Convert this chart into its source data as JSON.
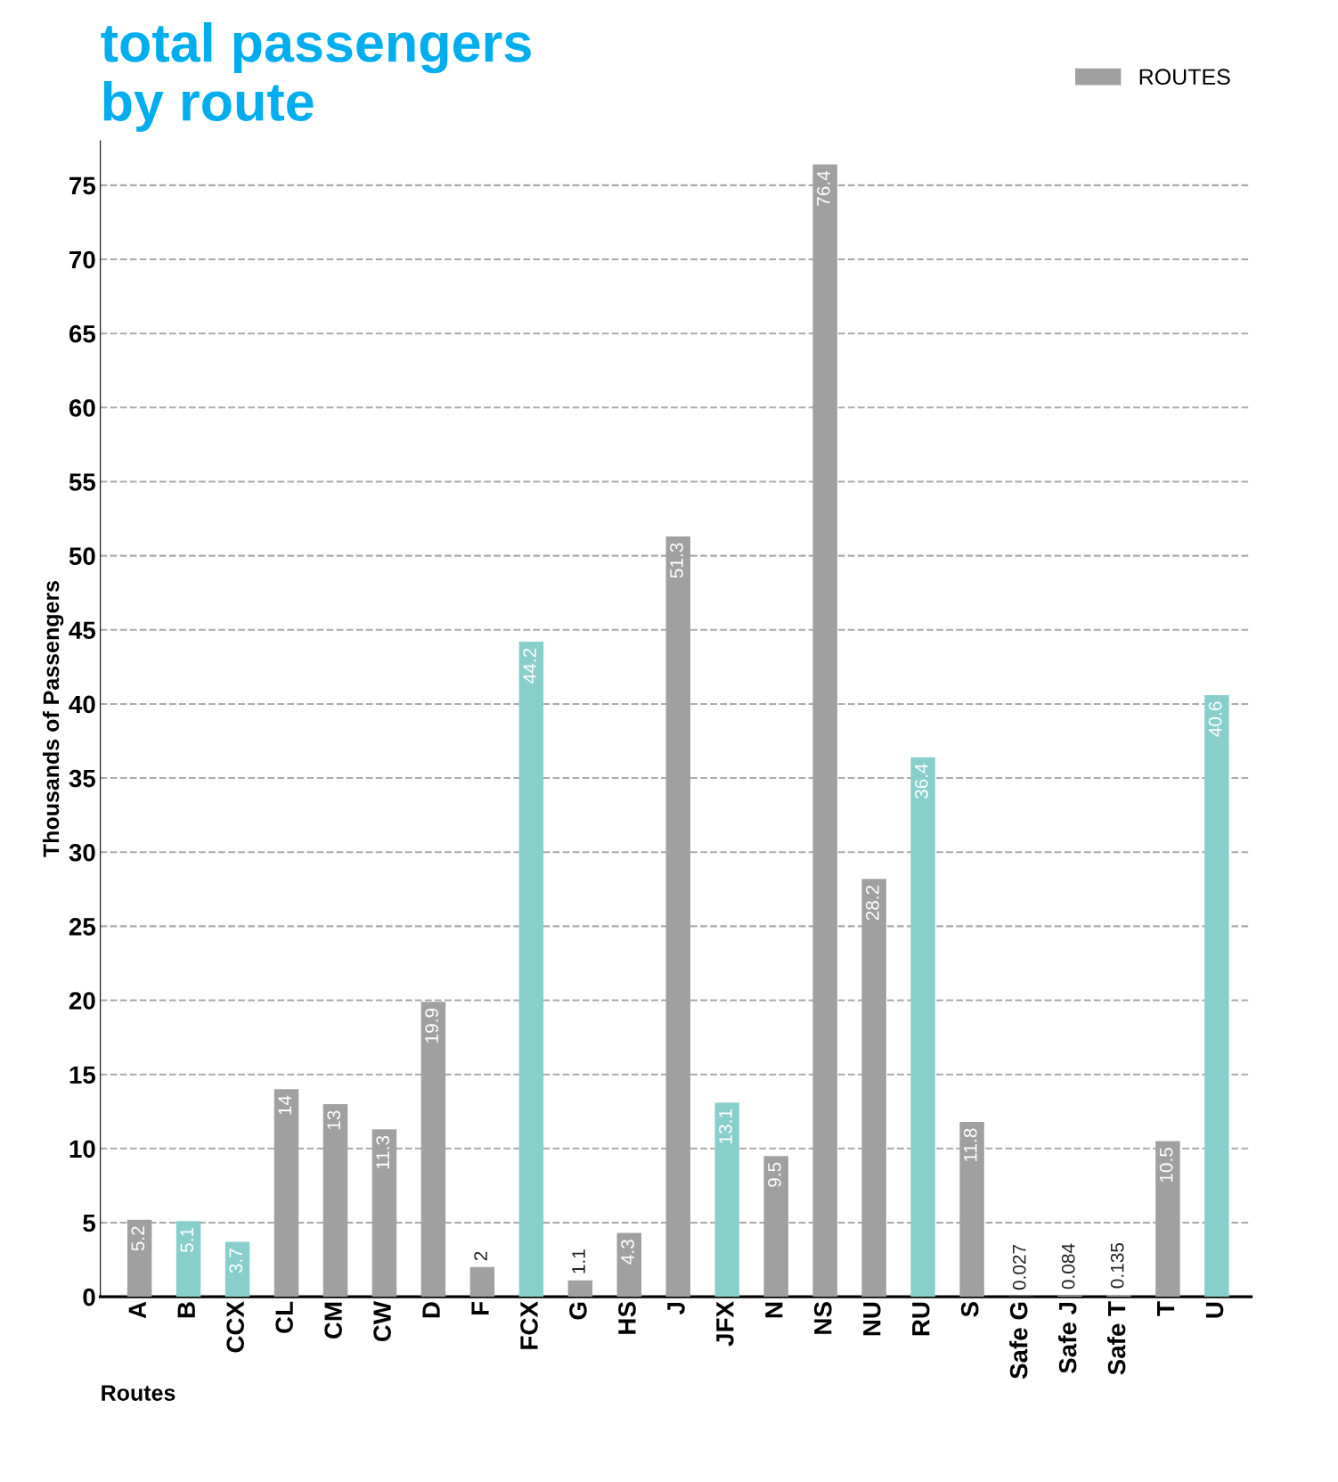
{
  "chart_data": {
    "type": "bar",
    "title": "total passengers\nby route",
    "xlabel": "Routes",
    "ylabel": "Thousands of Passengers",
    "categories": [
      "A",
      "B",
      "CCX",
      "CL",
      "CM",
      "CW",
      "D",
      "F",
      "FCX",
      "G",
      "HS",
      "J",
      "JFX",
      "N",
      "NS",
      "NU",
      "RU",
      "S",
      "Safe G",
      "Safe J",
      "Safe T",
      "T",
      "U"
    ],
    "series": [
      {
        "name": "ROUTES",
        "color": "#a0a0a0",
        "colors": [
          "#a0a0a0",
          "#88cfcc",
          "#88cfcc",
          "#a0a0a0",
          "#a0a0a0",
          "#a0a0a0",
          "#a0a0a0",
          "#a0a0a0",
          "#88cfcc",
          "#a0a0a0",
          "#a0a0a0",
          "#a0a0a0",
          "#88cfcc",
          "#a0a0a0",
          "#a0a0a0",
          "#a0a0a0",
          "#88cfcc",
          "#a0a0a0",
          "#a0a0a0",
          "#a0a0a0",
          "#a0a0a0",
          "#a0a0a0",
          "#88cfcc"
        ],
        "values": [
          5.2,
          5.1,
          3.7,
          14,
          13,
          11.3,
          19.9,
          2,
          44.2,
          1.1,
          4.3,
          51.3,
          13.1,
          9.5,
          76.4,
          28.2,
          36.4,
          11.8,
          0.027,
          0.084,
          0.135,
          10.5,
          40.6
        ]
      }
    ],
    "data_labels": true,
    "ylim": [
      0,
      78
    ],
    "yticks": [
      0,
      5,
      10,
      15,
      20,
      25,
      30,
      35,
      40,
      45,
      50,
      55,
      60,
      65,
      70,
      75
    ],
    "grid": "y",
    "legend": "top right"
  }
}
